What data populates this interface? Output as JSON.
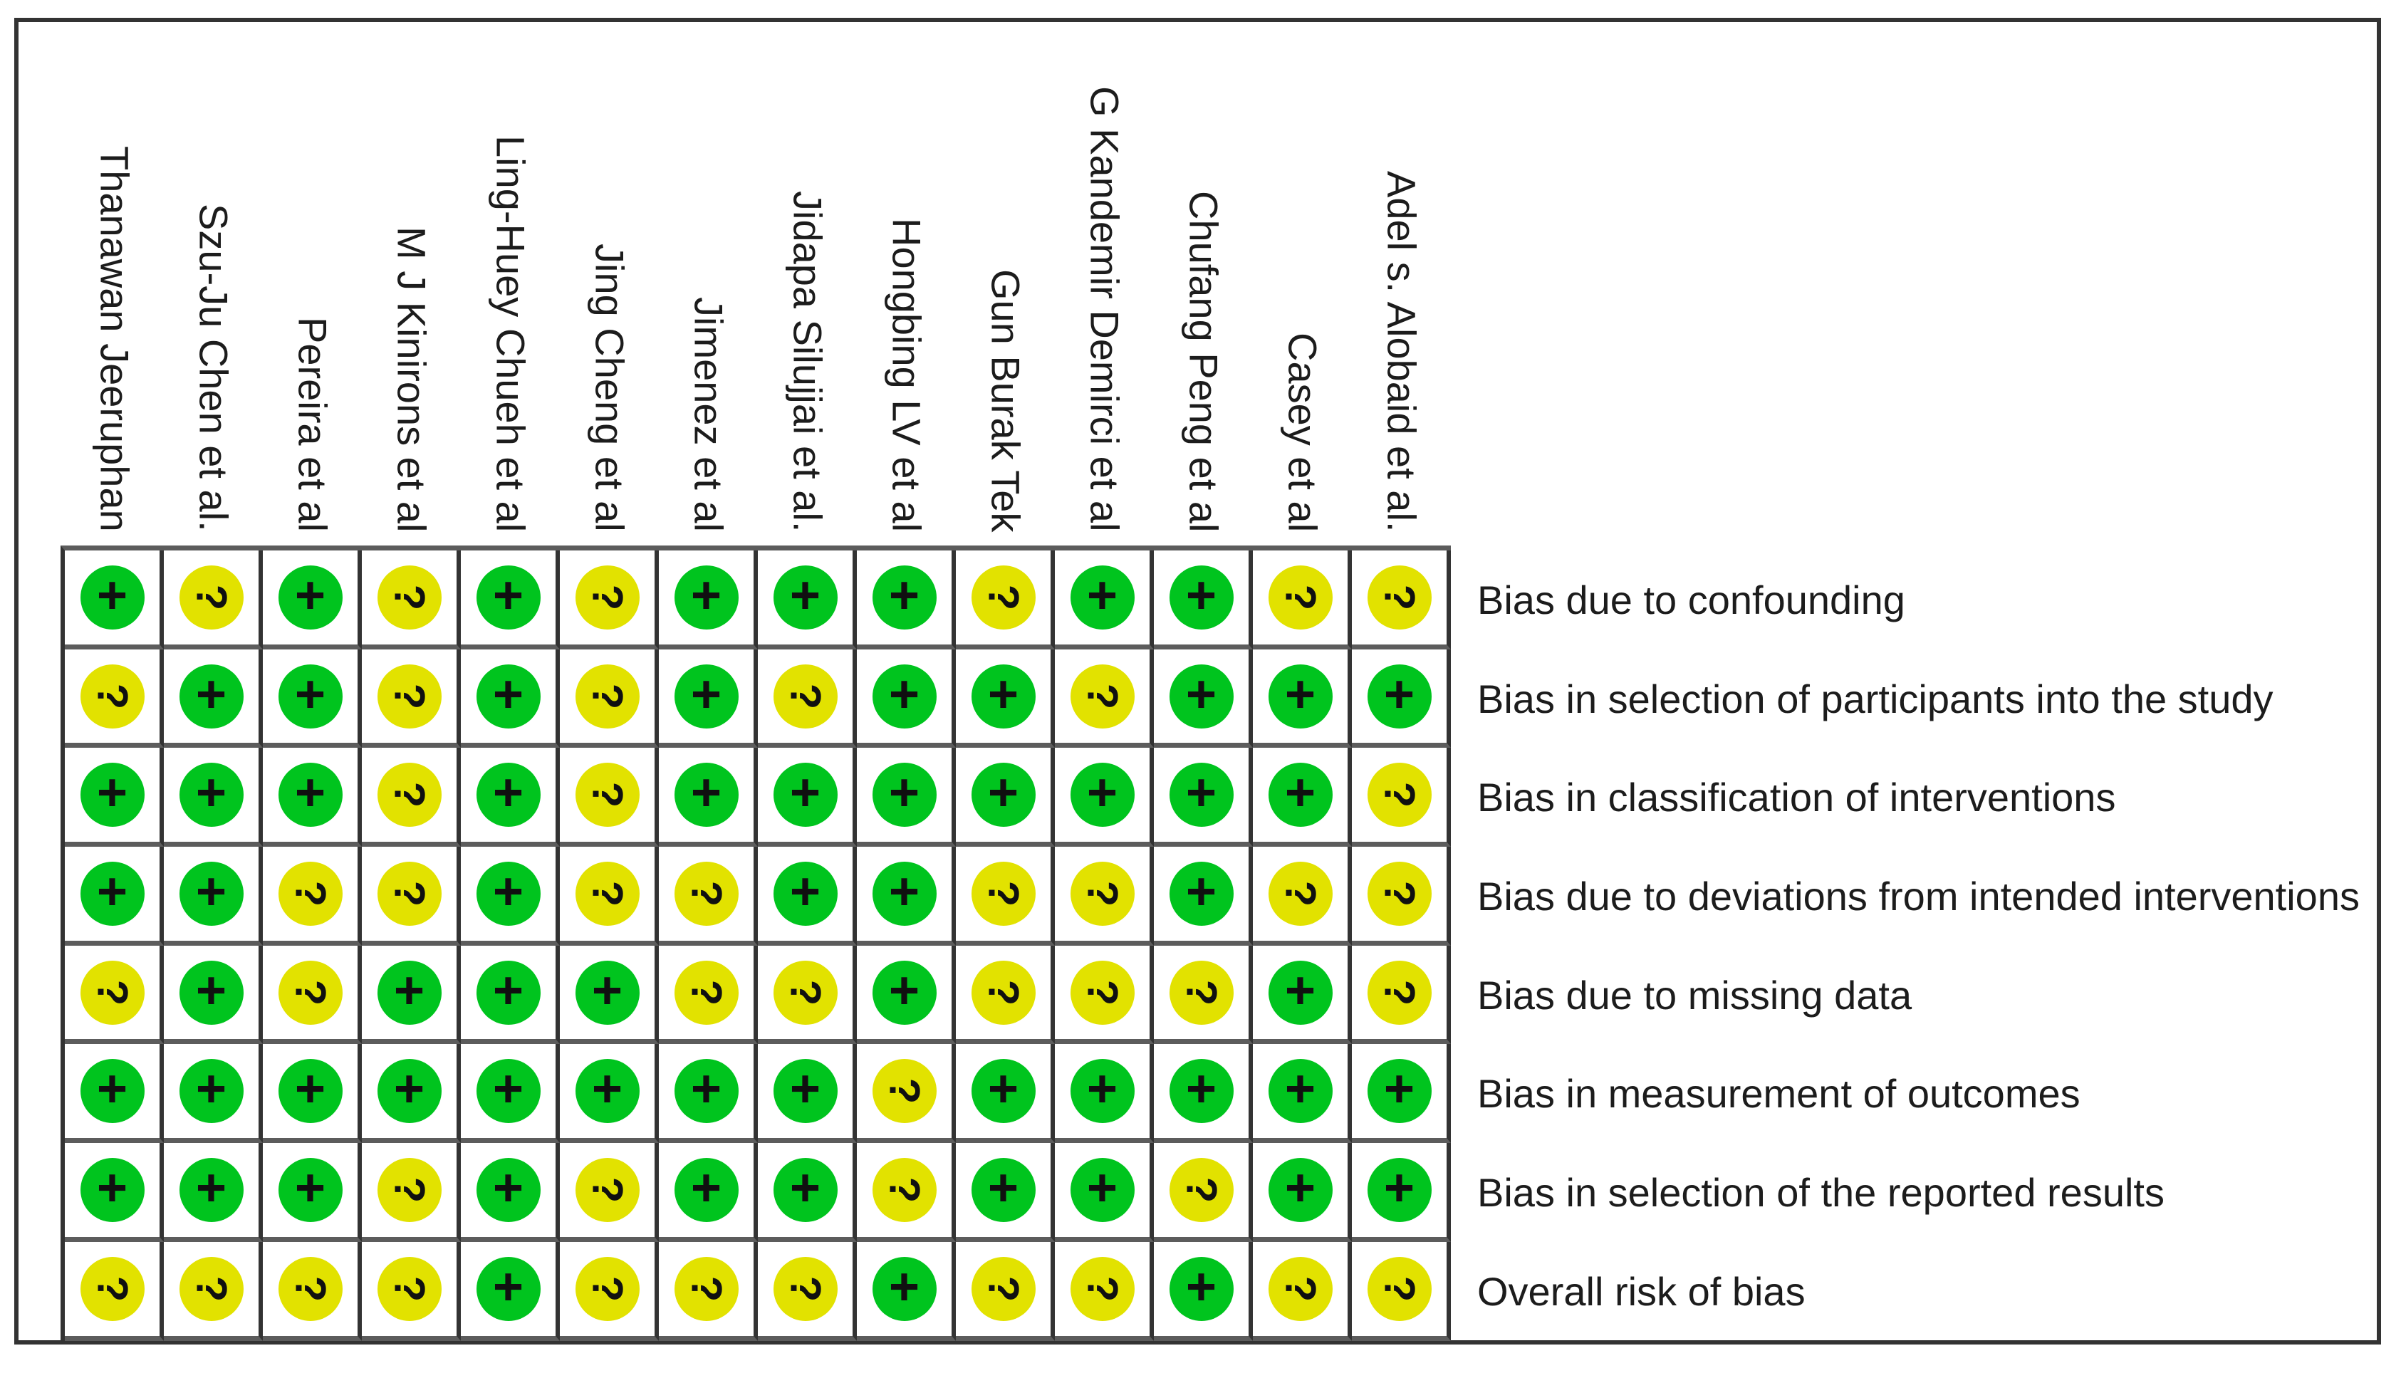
{
  "figure": {
    "kind": "risk-of-bias-summary-matrix",
    "studies": [
      "Thanawan Jeeruphan",
      "Szu-Ju Chen et al.",
      "Pereira et al",
      "M J Kinirons et al",
      "Ling-Huey Chueh et al",
      "Jing Cheng et al",
      "Jimenez et al",
      "Jidapa Silujjai et al.",
      "Hongbing LV et al",
      "Gun Burak Tek",
      "G Kandemir Demirci et al",
      "Chufang Peng et al",
      "Casey et al",
      "Adel s. Alobaid et al."
    ],
    "domains": [
      "Bias due to confounding",
      "Bias in selection of participants into the study",
      "Bias in classification of interventions",
      "Bias due to deviations from intended interventions",
      "Bias due to missing data",
      "Bias in measurement of outcomes",
      "Bias in selection of the reported results",
      "Overall risk of bias"
    ],
    "judgements": [
      [
        "+",
        "?",
        "+",
        "?",
        "+",
        "?",
        "+",
        "+",
        "+",
        "?",
        "+",
        "+",
        "?",
        "?"
      ],
      [
        "?",
        "+",
        "+",
        "?",
        "+",
        "?",
        "+",
        "?",
        "+",
        "+",
        "?",
        "+",
        "+",
        "+"
      ],
      [
        "+",
        "+",
        "+",
        "?",
        "+",
        "?",
        "+",
        "+",
        "+",
        "+",
        "+",
        "+",
        "+",
        "?"
      ],
      [
        "+",
        "+",
        "?",
        "?",
        "+",
        "?",
        "?",
        "+",
        "+",
        "?",
        "?",
        "+",
        "?",
        "?"
      ],
      [
        "?",
        "+",
        "?",
        "+",
        "+",
        "+",
        "?",
        "?",
        "+",
        "?",
        "?",
        "?",
        "+",
        "?"
      ],
      [
        "+",
        "+",
        "+",
        "+",
        "+",
        "+",
        "+",
        "+",
        "?",
        "+",
        "+",
        "+",
        "+",
        "+"
      ],
      [
        "+",
        "+",
        "+",
        "?",
        "+",
        "?",
        "+",
        "+",
        "?",
        "+",
        "+",
        "?",
        "+",
        "+"
      ],
      [
        "?",
        "?",
        "?",
        "?",
        "+",
        "?",
        "?",
        "?",
        "+",
        "?",
        "?",
        "+",
        "?",
        "?"
      ]
    ],
    "symbols": {
      "plus": "+",
      "question": "?"
    },
    "colors": {
      "plus_circle": "#00C41E",
      "question_circle": "#E2E200",
      "symbol": "#101010"
    }
  },
  "chart_data": {
    "type": "heatmap",
    "title": "",
    "x": [
      "Thanawan Jeeruphan",
      "Szu-Ju Chen et al.",
      "Pereira et al",
      "M J Kinirons et al",
      "Ling-Huey Chueh et al",
      "Jing Cheng et al",
      "Jimenez et al",
      "Jidapa Silujjai et al.",
      "Hongbing LV et al",
      "Gun Burak Tek",
      "G Kandemir Demirci et al",
      "Chufang Peng et al",
      "Casey et al",
      "Adel s. Alobaid et al."
    ],
    "y": [
      "Bias due to confounding",
      "Bias in selection of participants into the study",
      "Bias in classification of interventions",
      "Bias due to deviations from intended interventions",
      "Bias due to missing data",
      "Bias in measurement of outcomes",
      "Bias in selection of the reported results",
      "Overall risk of bias"
    ],
    "values": [
      [
        "+",
        "?",
        "+",
        "?",
        "+",
        "?",
        "+",
        "+",
        "+",
        "?",
        "+",
        "+",
        "?",
        "?"
      ],
      [
        "?",
        "+",
        "+",
        "?",
        "+",
        "?",
        "+",
        "?",
        "+",
        "+",
        "?",
        "+",
        "+",
        "+"
      ],
      [
        "+",
        "+",
        "+",
        "?",
        "+",
        "?",
        "+",
        "+",
        "+",
        "+",
        "+",
        "+",
        "+",
        "?"
      ],
      [
        "+",
        "+",
        "?",
        "?",
        "+",
        "?",
        "?",
        "+",
        "+",
        "?",
        "?",
        "+",
        "?",
        "?"
      ],
      [
        "?",
        "+",
        "?",
        "+",
        "+",
        "+",
        "?",
        "?",
        "+",
        "?",
        "?",
        "?",
        "+",
        "?"
      ],
      [
        "+",
        "+",
        "+",
        "+",
        "+",
        "+",
        "+",
        "+",
        "?",
        "+",
        "+",
        "+",
        "+",
        "+"
      ],
      [
        "+",
        "+",
        "+",
        "?",
        "+",
        "?",
        "+",
        "+",
        "?",
        "+",
        "+",
        "?",
        "+",
        "+"
      ],
      [
        "?",
        "?",
        "?",
        "?",
        "+",
        "?",
        "?",
        "?",
        "+",
        "?",
        "?",
        "+",
        "?",
        "?"
      ]
    ],
    "cell_style": {
      "+": {
        "color": "#00C41E",
        "glyph": "+"
      },
      "?": {
        "color": "#E2E200",
        "glyph": "?",
        "glyph_rotation_deg": 90
      }
    },
    "layout": {
      "grid": "on",
      "legend": "none",
      "x_labels": "vertical-top",
      "y_labels": "right"
    }
  }
}
